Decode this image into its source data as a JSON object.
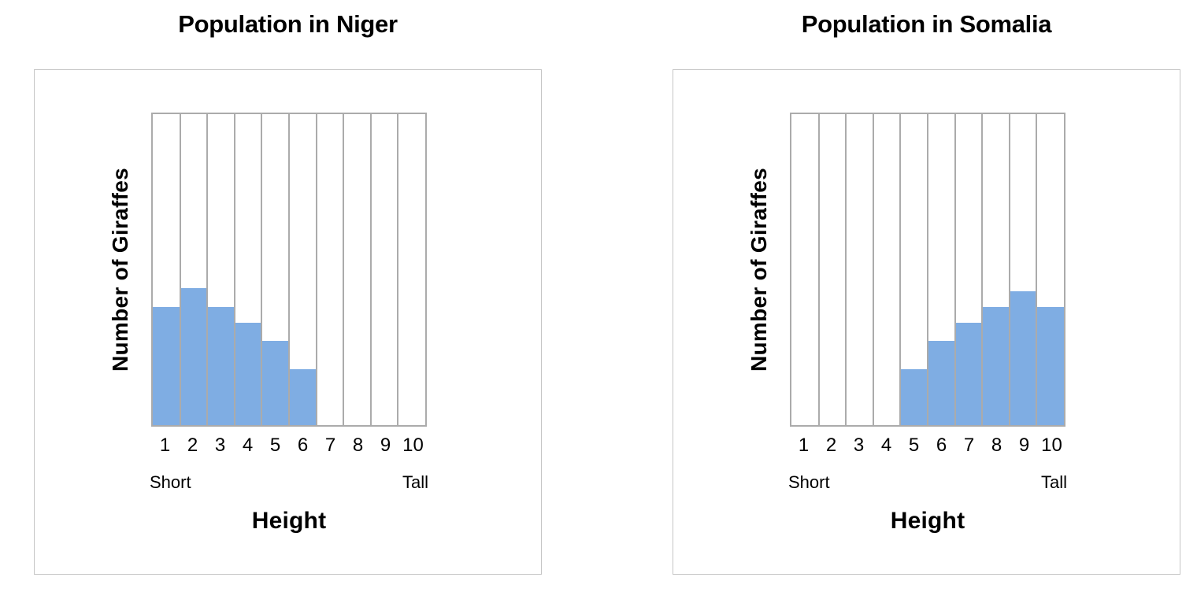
{
  "page": {
    "background_color": "#ffffff",
    "text_color": "#000000",
    "panel_border_color": "#c5c5c5"
  },
  "chart_data": [
    {
      "type": "bar",
      "title": "Population in Niger",
      "xlabel": "Height",
      "ylabel": "Number of Giraffes",
      "categories": [
        "1",
        "2",
        "3",
        "4",
        "5",
        "6",
        "7",
        "8",
        "9",
        "10"
      ],
      "values": [
        38,
        44,
        38,
        33,
        27,
        18,
        0,
        0,
        0,
        0
      ],
      "ylim": [
        0,
        100
      ],
      "xlim": [
        1,
        10
      ],
      "x_endpoint_labels": [
        "Short",
        "Tall"
      ],
      "y_tick_labels_shown": false,
      "grid": "vertical-bin-dividers",
      "legend_position": "none",
      "bar_color": "#7fade3",
      "grid_color": "#ababab"
    },
    {
      "type": "bar",
      "title": "Population in Somalia",
      "xlabel": "Height",
      "ylabel": "Number of Giraffes",
      "categories": [
        "1",
        "2",
        "3",
        "4",
        "5",
        "6",
        "7",
        "8",
        "9",
        "10"
      ],
      "values": [
        0,
        0,
        0,
        0,
        18,
        27,
        33,
        38,
        43,
        38
      ],
      "ylim": [
        0,
        100
      ],
      "xlim": [
        1,
        10
      ],
      "x_endpoint_labels": [
        "Short",
        "Tall"
      ],
      "y_tick_labels_shown": false,
      "grid": "vertical-bin-dividers",
      "legend_position": "none",
      "bar_color": "#7fade3",
      "grid_color": "#ababab"
    }
  ]
}
